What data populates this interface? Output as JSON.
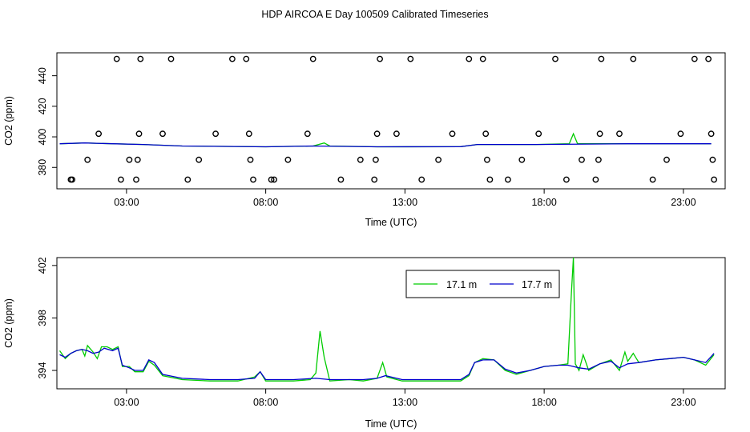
{
  "title": "HDP AIRCOA E  Day 100509  Calibrated Timeseries",
  "colors": {
    "green": "#00cc00",
    "blue": "#0000cc",
    "axis": "#000000"
  },
  "chart_data": [
    {
      "type": "scatter",
      "xlabel": "Time (UTC)",
      "ylabel": "CO2 (ppm)",
      "xlim": [
        0.5,
        24.5
      ],
      "ylim": [
        366,
        455
      ],
      "x_ticks": [
        3,
        8,
        13,
        18,
        23
      ],
      "x_tick_labels": [
        "03:00",
        "08:00",
        "13:00",
        "18:00",
        "23:00"
      ],
      "y_ticks": [
        380,
        400,
        420,
        440
      ],
      "y_tick_labels": [
        "380",
        "400",
        "420",
        "440"
      ],
      "grid": false,
      "circles": [
        [
          1.0,
          372
        ],
        [
          1.05,
          372
        ],
        [
          1.6,
          385
        ],
        [
          2.0,
          402
        ],
        [
          2.65,
          451
        ],
        [
          2.8,
          372
        ],
        [
          3.1,
          385
        ],
        [
          3.35,
          372
        ],
        [
          3.4,
          385
        ],
        [
          3.45,
          402
        ],
        [
          3.5,
          451
        ],
        [
          4.3,
          402
        ],
        [
          4.6,
          451
        ],
        [
          5.2,
          372
        ],
        [
          5.6,
          385
        ],
        [
          6.2,
          402
        ],
        [
          6.8,
          451
        ],
        [
          7.3,
          451
        ],
        [
          7.4,
          402
        ],
        [
          7.45,
          385
        ],
        [
          7.55,
          372
        ],
        [
          8.2,
          372
        ],
        [
          8.3,
          372
        ],
        [
          8.8,
          385
        ],
        [
          9.5,
          402
        ],
        [
          9.7,
          451
        ],
        [
          10.7,
          372
        ],
        [
          11.4,
          385
        ],
        [
          11.9,
          372
        ],
        [
          11.95,
          385
        ],
        [
          12.0,
          402
        ],
        [
          12.1,
          451
        ],
        [
          12.7,
          402
        ],
        [
          13.2,
          451
        ],
        [
          13.6,
          372
        ],
        [
          14.2,
          385
        ],
        [
          14.7,
          402
        ],
        [
          15.3,
          451
        ],
        [
          15.8,
          451
        ],
        [
          15.9,
          402
        ],
        [
          15.95,
          385
        ],
        [
          16.05,
          372
        ],
        [
          16.7,
          372
        ],
        [
          17.2,
          385
        ],
        [
          17.8,
          402
        ],
        [
          18.4,
          451
        ],
        [
          18.8,
          372
        ],
        [
          19.35,
          385
        ],
        [
          19.85,
          372
        ],
        [
          19.95,
          385
        ],
        [
          20.0,
          402
        ],
        [
          20.05,
          451
        ],
        [
          20.7,
          402
        ],
        [
          21.2,
          451
        ],
        [
          21.9,
          372
        ],
        [
          22.4,
          385
        ],
        [
          22.9,
          402
        ],
        [
          23.4,
          451
        ],
        [
          23.9,
          451
        ],
        [
          24.0,
          402
        ],
        [
          24.05,
          385
        ],
        [
          24.1,
          372
        ]
      ],
      "series": [
        {
          "color": "#00cc00",
          "points": [
            [
              0.6,
              395.5
            ],
            [
              1.5,
              396
            ],
            [
              2.5,
              395.5
            ],
            [
              3.6,
              395
            ],
            [
              5,
              394
            ],
            [
              8,
              393.5
            ],
            [
              9.7,
              394
            ],
            [
              10.1,
              396
            ],
            [
              10.3,
              394
            ],
            [
              12,
              393.5
            ],
            [
              15,
              393.6
            ],
            [
              15.6,
              395
            ],
            [
              17.7,
              395
            ],
            [
              18.9,
              395.5
            ],
            [
              19.05,
              402
            ],
            [
              19.2,
              395.5
            ],
            [
              21,
              395.5
            ],
            [
              22.5,
              395.5
            ],
            [
              24,
              395.5
            ]
          ]
        },
        {
          "color": "#0000cc",
          "points": [
            [
              0.6,
              395.5
            ],
            [
              1.5,
              396
            ],
            [
              2.5,
              395.5
            ],
            [
              3.6,
              395
            ],
            [
              5,
              394
            ],
            [
              8,
              393.5
            ],
            [
              9.7,
              394
            ],
            [
              12,
              393.5
            ],
            [
              15,
              393.6
            ],
            [
              15.6,
              395
            ],
            [
              17.7,
              395
            ],
            [
              21,
              395.5
            ],
            [
              22.5,
              395.5
            ],
            [
              24,
              395.5
            ]
          ]
        }
      ]
    },
    {
      "type": "line",
      "xlabel": "Time (UTC)",
      "ylabel": "CO2 (ppm)",
      "xlim": [
        0.5,
        24.5
      ],
      "ylim": [
        392.6,
        402.6
      ],
      "x_ticks": [
        3,
        8,
        13,
        18,
        23
      ],
      "x_tick_labels": [
        "03:00",
        "08:00",
        "13:00",
        "18:00",
        "23:00"
      ],
      "y_ticks": [
        394,
        398,
        402
      ],
      "y_tick_labels": [
        "394",
        "398",
        "402"
      ],
      "grid": false,
      "legend": {
        "placement": "top-right",
        "entries": [
          {
            "label": "17.1 m",
            "color": "#00cc00"
          },
          {
            "label": "17.7 m",
            "color": "#0000cc"
          }
        ]
      },
      "series": [
        {
          "name": "17.1 m",
          "color": "#00cc00",
          "points": [
            [
              0.6,
              395.5
            ],
            [
              0.8,
              394.9
            ],
            [
              1.0,
              395.3
            ],
            [
              1.2,
              395.5
            ],
            [
              1.4,
              395.6
            ],
            [
              1.5,
              395.1
            ],
            [
              1.6,
              395.9
            ],
            [
              1.8,
              395.4
            ],
            [
              1.95,
              394.9
            ],
            [
              2.1,
              395.8
            ],
            [
              2.3,
              395.8
            ],
            [
              2.5,
              395.6
            ],
            [
              2.7,
              395.8
            ],
            [
              2.85,
              394.3
            ],
            [
              3.1,
              394.3
            ],
            [
              3.3,
              393.9
            ],
            [
              3.6,
              393.9
            ],
            [
              3.8,
              394.7
            ],
            [
              4.0,
              394.4
            ],
            [
              4.3,
              393.6
            ],
            [
              5.0,
              393.3
            ],
            [
              6.0,
              393.2
            ],
            [
              7.0,
              393.2
            ],
            [
              7.6,
              393.5
            ],
            [
              7.8,
              393.9
            ],
            [
              8.0,
              393.2
            ],
            [
              9.0,
              393.2
            ],
            [
              9.6,
              393.3
            ],
            [
              9.8,
              393.8
            ],
            [
              9.95,
              397.0
            ],
            [
              10.1,
              395.0
            ],
            [
              10.3,
              393.2
            ],
            [
              11.0,
              393.3
            ],
            [
              11.5,
              393.2
            ],
            [
              12.0,
              393.4
            ],
            [
              12.2,
              394.6
            ],
            [
              12.35,
              393.5
            ],
            [
              12.9,
              393.2
            ],
            [
              13.5,
              393.2
            ],
            [
              14.5,
              393.2
            ],
            [
              15.0,
              393.2
            ],
            [
              15.3,
              393.6
            ],
            [
              15.5,
              394.6
            ],
            [
              15.8,
              394.9
            ],
            [
              16.2,
              394.8
            ],
            [
              16.6,
              394.0
            ],
            [
              17.0,
              393.7
            ],
            [
              17.5,
              394.0
            ],
            [
              18.0,
              394.3
            ],
            [
              18.5,
              394.4
            ],
            [
              18.85,
              394.5
            ],
            [
              18.98,
              400.0
            ],
            [
              19.05,
              402.6
            ],
            [
              19.12,
              394.5
            ],
            [
              19.25,
              394.0
            ],
            [
              19.4,
              395.2
            ],
            [
              19.6,
              394.0
            ],
            [
              20.0,
              394.5
            ],
            [
              20.4,
              394.8
            ],
            [
              20.7,
              394.0
            ],
            [
              20.9,
              395.4
            ],
            [
              21.0,
              394.7
            ],
            [
              21.2,
              395.3
            ],
            [
              21.4,
              394.6
            ],
            [
              22.0,
              394.8
            ],
            [
              22.5,
              394.9
            ],
            [
              23.0,
              395.0
            ],
            [
              23.4,
              394.8
            ],
            [
              23.8,
              394.4
            ],
            [
              24.1,
              395.2
            ]
          ]
        },
        {
          "name": "17.7 m",
          "color": "#0000cc",
          "points": [
            [
              0.6,
              395.2
            ],
            [
              0.8,
              395.0
            ],
            [
              1.0,
              395.3
            ],
            [
              1.2,
              395.5
            ],
            [
              1.4,
              395.6
            ],
            [
              1.6,
              395.5
            ],
            [
              1.8,
              395.3
            ],
            [
              2.0,
              395.4
            ],
            [
              2.2,
              395.7
            ],
            [
              2.5,
              395.5
            ],
            [
              2.7,
              395.7
            ],
            [
              2.85,
              394.4
            ],
            [
              3.1,
              394.2
            ],
            [
              3.3,
              394.0
            ],
            [
              3.6,
              394.0
            ],
            [
              3.8,
              394.8
            ],
            [
              4.0,
              394.6
            ],
            [
              4.3,
              393.7
            ],
            [
              5.0,
              393.4
            ],
            [
              6.0,
              393.3
            ],
            [
              7.0,
              393.3
            ],
            [
              7.6,
              393.4
            ],
            [
              7.8,
              393.9
            ],
            [
              8.0,
              393.3
            ],
            [
              9.0,
              393.3
            ],
            [
              9.8,
              393.4
            ],
            [
              10.3,
              393.3
            ],
            [
              11.0,
              393.3
            ],
            [
              11.5,
              393.3
            ],
            [
              12.0,
              393.4
            ],
            [
              12.3,
              393.6
            ],
            [
              12.9,
              393.3
            ],
            [
              13.5,
              393.3
            ],
            [
              14.5,
              393.3
            ],
            [
              15.0,
              393.3
            ],
            [
              15.3,
              393.7
            ],
            [
              15.5,
              394.6
            ],
            [
              15.8,
              394.8
            ],
            [
              16.2,
              394.8
            ],
            [
              16.6,
              394.1
            ],
            [
              17.0,
              393.8
            ],
            [
              17.5,
              394.0
            ],
            [
              18.0,
              394.3
            ],
            [
              18.5,
              394.4
            ],
            [
              18.85,
              394.4
            ],
            [
              19.05,
              394.3
            ],
            [
              19.25,
              394.2
            ],
            [
              19.6,
              394.1
            ],
            [
              20.0,
              394.5
            ],
            [
              20.4,
              394.7
            ],
            [
              20.7,
              394.2
            ],
            [
              21.0,
              394.5
            ],
            [
              21.4,
              394.6
            ],
            [
              22.0,
              394.8
            ],
            [
              22.5,
              394.9
            ],
            [
              23.0,
              395.0
            ],
            [
              23.4,
              394.8
            ],
            [
              23.8,
              394.6
            ],
            [
              24.1,
              395.3
            ]
          ]
        }
      ]
    }
  ]
}
